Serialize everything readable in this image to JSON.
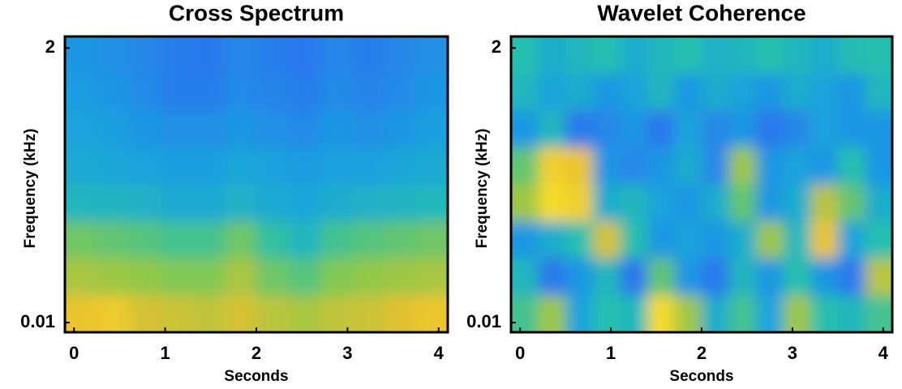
{
  "chart_data": [
    {
      "type": "heatmap",
      "title": "Cross Spectrum",
      "xlabel": "Seconds",
      "ylabel": "Frequency (kHz)",
      "xlim": [
        -0.1,
        4.1
      ],
      "xticks": [
        0,
        1,
        2,
        3,
        4
      ],
      "ylim": [
        0.0083,
        2.5
      ],
      "yticks": [
        0.01,
        2
      ],
      "yscale": "log",
      "colormap": [
        "#3a3ee0",
        "#2f6ef0",
        "#1aa0e0",
        "#27bfae",
        "#8cc94a",
        "#e8c030",
        "#f9e72a"
      ],
      "z": [
        [
          0.3,
          0.28,
          0.25,
          0.22,
          0.2,
          0.25,
          0.22,
          0.2,
          0.25,
          0.22,
          0.25,
          0.28
        ],
        [
          0.32,
          0.3,
          0.26,
          0.22,
          0.22,
          0.26,
          0.24,
          0.22,
          0.26,
          0.24,
          0.26,
          0.3
        ],
        [
          0.35,
          0.33,
          0.3,
          0.28,
          0.28,
          0.3,
          0.28,
          0.26,
          0.3,
          0.28,
          0.3,
          0.33
        ],
        [
          0.38,
          0.36,
          0.35,
          0.33,
          0.33,
          0.36,
          0.34,
          0.32,
          0.34,
          0.34,
          0.36,
          0.38
        ],
        [
          0.45,
          0.44,
          0.42,
          0.38,
          0.38,
          0.42,
          0.38,
          0.36,
          0.4,
          0.42,
          0.44,
          0.46
        ],
        [
          0.62,
          0.6,
          0.58,
          0.55,
          0.55,
          0.62,
          0.52,
          0.45,
          0.55,
          0.58,
          0.6,
          0.62
        ],
        [
          0.72,
          0.7,
          0.68,
          0.65,
          0.65,
          0.72,
          0.62,
          0.58,
          0.65,
          0.68,
          0.7,
          0.72
        ],
        [
          0.85,
          0.88,
          0.8,
          0.78,
          0.76,
          0.8,
          0.75,
          0.72,
          0.76,
          0.78,
          0.82,
          0.86
        ]
      ]
    },
    {
      "type": "heatmap",
      "title": "Wavelet Coherence",
      "xlabel": "Seconds",
      "ylabel": "Frequency (kHz)",
      "xlim": [
        -0.1,
        4.1
      ],
      "xticks": [
        0,
        1,
        2,
        3,
        4
      ],
      "ylim": [
        0.0083,
        2.5
      ],
      "yticks": [
        0.01,
        2
      ],
      "yscale": "log",
      "colormap": [
        "#3a3ee0",
        "#2f6ef0",
        "#1aa0e0",
        "#27bfae",
        "#8cc94a",
        "#e8c030",
        "#f9e72a"
      ],
      "z": [
        [
          0.5,
          0.4,
          0.45,
          0.5,
          0.4,
          0.45,
          0.5,
          0.42,
          0.45,
          0.5,
          0.45,
          0.4,
          0.48,
          0.5
        ],
        [
          0.45,
          0.35,
          0.4,
          0.3,
          0.35,
          0.45,
          0.3,
          0.4,
          0.35,
          0.3,
          0.4,
          0.35,
          0.3,
          0.45
        ],
        [
          0.3,
          0.45,
          0.2,
          0.25,
          0.3,
          0.2,
          0.35,
          0.25,
          0.3,
          0.2,
          0.25,
          0.35,
          0.3,
          0.3
        ],
        [
          0.6,
          0.9,
          0.85,
          0.3,
          0.25,
          0.3,
          0.4,
          0.25,
          0.7,
          0.3,
          0.35,
          0.3,
          0.5,
          0.3
        ],
        [
          0.7,
          0.95,
          0.9,
          0.4,
          0.45,
          0.35,
          0.3,
          0.4,
          0.6,
          0.3,
          0.4,
          0.75,
          0.6,
          0.4
        ],
        [
          0.3,
          0.4,
          0.5,
          0.8,
          0.5,
          0.3,
          0.35,
          0.3,
          0.4,
          0.7,
          0.45,
          0.85,
          0.35,
          0.5
        ],
        [
          0.45,
          0.2,
          0.3,
          0.45,
          0.2,
          0.6,
          0.3,
          0.2,
          0.45,
          0.3,
          0.5,
          0.3,
          0.2,
          0.75
        ],
        [
          0.55,
          0.7,
          0.35,
          0.5,
          0.45,
          0.95,
          0.7,
          0.4,
          0.55,
          0.35,
          0.7,
          0.5,
          0.45,
          0.55
        ]
      ]
    }
  ]
}
